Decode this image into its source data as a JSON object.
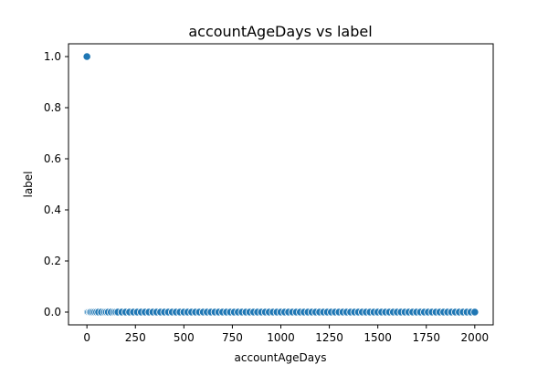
{
  "chart_data": {
    "type": "scatter",
    "title": "accountAgeDays vs label",
    "xlabel": "accountAgeDays",
    "ylabel": "label",
    "xlim": [
      -95,
      2095
    ],
    "ylim": [
      -0.05,
      1.05
    ],
    "xticks": [
      0,
      250,
      500,
      750,
      1000,
      1250,
      1500,
      1750,
      2000
    ],
    "yticks": [
      0.0,
      0.2,
      0.4,
      0.6,
      0.8,
      1.0
    ],
    "ytick_labels": [
      "0.0",
      "0.2",
      "0.4",
      "0.6",
      "0.8",
      "1.0"
    ],
    "grid": false,
    "marker_color": "#1f77b4",
    "marker_edge": "#ffffff",
    "series": [
      {
        "x": [
          1,
          3,
          8,
          15,
          20,
          30,
          40,
          50,
          60,
          75,
          90,
          100,
          110,
          125,
          140,
          150,
          160,
          180,
          200,
          220,
          240,
          260,
          280,
          300,
          320,
          340,
          360,
          380,
          400,
          420,
          440,
          460,
          480,
          500,
          520,
          540,
          560,
          580,
          600,
          620,
          640,
          660,
          680,
          700,
          720,
          740,
          760,
          780,
          800,
          820,
          840,
          860,
          880,
          900,
          920,
          940,
          960,
          980,
          1000,
          1020,
          1040,
          1060,
          1080,
          1100,
          1120,
          1140,
          1160,
          1180,
          1200,
          1220,
          1240,
          1260,
          1280,
          1300,
          1320,
          1340,
          1360,
          1380,
          1400,
          1420,
          1440,
          1460,
          1480,
          1500,
          1520,
          1540,
          1560,
          1580,
          1600,
          1620,
          1640,
          1660,
          1680,
          1700,
          1720,
          1740,
          1760,
          1780,
          1800,
          1820,
          1840,
          1860,
          1880,
          1900,
          1920,
          1940,
          1960,
          1980,
          2000,
          0
        ],
        "y": [
          0,
          0,
          0,
          0,
          0,
          0,
          0,
          0,
          0,
          0,
          0,
          0,
          0,
          0,
          0,
          0,
          0,
          0,
          0,
          0,
          0,
          0,
          0,
          0,
          0,
          0,
          0,
          0,
          0,
          0,
          0,
          0,
          0,
          0,
          0,
          0,
          0,
          0,
          0,
          0,
          0,
          0,
          0,
          0,
          0,
          0,
          0,
          0,
          0,
          0,
          0,
          0,
          0,
          0,
          0,
          0,
          0,
          0,
          0,
          0,
          0,
          0,
          0,
          0,
          0,
          0,
          0,
          0,
          0,
          0,
          0,
          0,
          0,
          0,
          0,
          0,
          0,
          0,
          0,
          0,
          0,
          0,
          0,
          0,
          0,
          0,
          0,
          0,
          0,
          0,
          0,
          0,
          0,
          0,
          0,
          0,
          0,
          0,
          0,
          0,
          0,
          0,
          0,
          0,
          0,
          0,
          0,
          0,
          0,
          1
        ]
      }
    ]
  }
}
